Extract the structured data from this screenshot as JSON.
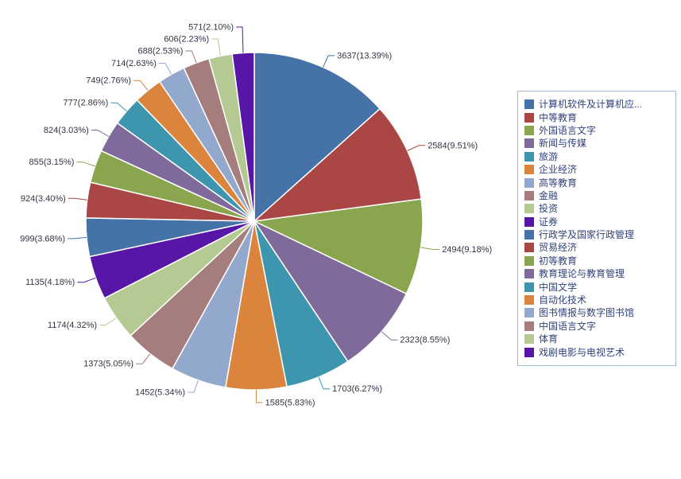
{
  "chart_data": {
    "type": "pie",
    "title": "",
    "legend_position": "right",
    "direction": "clockwise",
    "start_angle_deg": 0,
    "label_format": "value(pct%)",
    "palette": [
      "#4572A7",
      "#AA4643",
      "#89A54E",
      "#80699B",
      "#3D96AE",
      "#DB843D",
      "#92A8CD",
      "#A47D7C",
      "#B5CA92",
      "#5716A6"
    ],
    "colors": {
      "background": "#ffffff",
      "slice_stroke": "#ffffff",
      "label_text": "#333344",
      "legend_text": "#31437c",
      "legend_border": "#a3b8d8",
      "legend_background": "#ffffff"
    },
    "items": [
      {
        "label": "计算机软件及计算机应...",
        "value": 3637,
        "pct": "13.39"
      },
      {
        "label": "中等教育",
        "value": 2584,
        "pct": "9.51"
      },
      {
        "label": "外国语言文字",
        "value": 2494,
        "pct": "9.18"
      },
      {
        "label": "新闻与传媒",
        "value": 2323,
        "pct": "8.55"
      },
      {
        "label": "旅游",
        "value": 1703,
        "pct": "6.27"
      },
      {
        "label": "企业经济",
        "value": 1585,
        "pct": "5.83"
      },
      {
        "label": "高等教育",
        "value": 1452,
        "pct": "5.34"
      },
      {
        "label": "金融",
        "value": 1373,
        "pct": "5.05"
      },
      {
        "label": "投资",
        "value": 1174,
        "pct": "4.32"
      },
      {
        "label": "证券",
        "value": 1135,
        "pct": "4.18"
      },
      {
        "label": "行政学及国家行政管理",
        "value": 999,
        "pct": "3.68"
      },
      {
        "label": "贸易经济",
        "value": 924,
        "pct": "3.40"
      },
      {
        "label": "初等教育",
        "value": 855,
        "pct": "3.15"
      },
      {
        "label": "教育理论与教育管理",
        "value": 824,
        "pct": "3.03"
      },
      {
        "label": "中国文学",
        "value": 777,
        "pct": "2.86"
      },
      {
        "label": "自动化技术",
        "value": 749,
        "pct": "2.76"
      },
      {
        "label": "图书情报与数字图书馆",
        "value": 714,
        "pct": "2.63"
      },
      {
        "label": "中国语言文字",
        "value": 688,
        "pct": "2.53"
      },
      {
        "label": "体育",
        "value": 606,
        "pct": "2.23"
      },
      {
        "label": "戏剧电影与电视艺术",
        "value": 571,
        "pct": "2.10"
      }
    ]
  }
}
